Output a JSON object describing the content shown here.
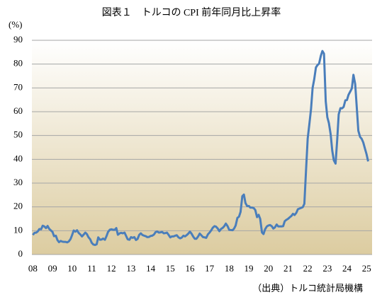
{
  "chart_data": {
    "type": "line",
    "title": "図表１　トルコの CPI 前年同月比上昇率",
    "y_label": "(%)",
    "source": "（出典）トルコ統計局機構",
    "x": [
      2008.0,
      2008.08,
      2008.17,
      2008.25,
      2008.33,
      2008.42,
      2008.5,
      2008.58,
      2008.67,
      2008.75,
      2008.83,
      2008.92,
      2009.0,
      2009.08,
      2009.17,
      2009.25,
      2009.33,
      2009.42,
      2009.5,
      2009.58,
      2009.67,
      2009.75,
      2009.83,
      2009.92,
      2010.0,
      2010.08,
      2010.17,
      2010.25,
      2010.33,
      2010.42,
      2010.5,
      2010.58,
      2010.67,
      2010.75,
      2010.83,
      2010.92,
      2011.0,
      2011.08,
      2011.17,
      2011.25,
      2011.33,
      2011.42,
      2011.5,
      2011.58,
      2011.67,
      2011.75,
      2011.83,
      2011.92,
      2012.0,
      2012.08,
      2012.17,
      2012.25,
      2012.33,
      2012.42,
      2012.5,
      2012.58,
      2012.67,
      2012.75,
      2012.83,
      2012.92,
      2013.0,
      2013.08,
      2013.17,
      2013.25,
      2013.33,
      2013.42,
      2013.5,
      2013.58,
      2013.67,
      2013.75,
      2013.83,
      2013.92,
      2014.0,
      2014.08,
      2014.17,
      2014.25,
      2014.33,
      2014.42,
      2014.5,
      2014.58,
      2014.67,
      2014.75,
      2014.83,
      2014.92,
      2015.0,
      2015.08,
      2015.17,
      2015.25,
      2015.33,
      2015.42,
      2015.5,
      2015.58,
      2015.67,
      2015.75,
      2015.83,
      2015.92,
      2016.0,
      2016.08,
      2016.17,
      2016.25,
      2016.33,
      2016.42,
      2016.5,
      2016.58,
      2016.67,
      2016.75,
      2016.83,
      2016.92,
      2017.0,
      2017.08,
      2017.17,
      2017.25,
      2017.33,
      2017.42,
      2017.5,
      2017.58,
      2017.67,
      2017.75,
      2017.83,
      2017.92,
      2018.0,
      2018.08,
      2018.17,
      2018.25,
      2018.33,
      2018.42,
      2018.5,
      2018.58,
      2018.67,
      2018.75,
      2018.83,
      2018.92,
      2019.0,
      2019.08,
      2019.17,
      2019.25,
      2019.33,
      2019.42,
      2019.5,
      2019.58,
      2019.67,
      2019.75,
      2019.83,
      2019.92,
      2020.0,
      2020.08,
      2020.17,
      2020.25,
      2020.33,
      2020.42,
      2020.5,
      2020.58,
      2020.67,
      2020.75,
      2020.83,
      2020.92,
      2021.0,
      2021.08,
      2021.17,
      2021.25,
      2021.33,
      2021.42,
      2021.5,
      2021.58,
      2021.67,
      2021.75,
      2021.83,
      2021.92,
      2022.0,
      2022.08,
      2022.17,
      2022.25,
      2022.33,
      2022.42,
      2022.5,
      2022.58,
      2022.67,
      2022.75,
      2022.83,
      2022.92,
      2023.0,
      2023.08,
      2023.17,
      2023.25,
      2023.33,
      2023.42,
      2023.5,
      2023.58,
      2023.67,
      2023.75,
      2023.83,
      2023.92,
      2024.0,
      2024.08,
      2024.17,
      2024.25,
      2024.33,
      2024.42,
      2024.5,
      2024.58,
      2024.67,
      2024.75,
      2024.83,
      2024.92,
      2025.0,
      2025.08
    ],
    "series": [
      {
        "color": "#4a7ebb",
        "values": [
          8.2,
          9.1,
          9.2,
          9.7,
          10.7,
          10.6,
          12.1,
          11.8,
          11.1,
          12.0,
          10.8,
          10.1,
          9.5,
          7.7,
          7.9,
          6.1,
          5.2,
          5.7,
          5.4,
          5.3,
          5.3,
          5.1,
          5.5,
          6.5,
          8.2,
          10.1,
          9.6,
          10.2,
          9.1,
          8.4,
          7.6,
          8.3,
          9.2,
          8.6,
          7.3,
          6.4,
          4.9,
          4.2,
          4.0,
          4.3,
          7.2,
          6.2,
          6.3,
          6.7,
          6.2,
          7.7,
          9.5,
          10.4,
          10.6,
          10.4,
          10.4,
          11.1,
          8.3,
          8.9,
          9.1,
          8.9,
          9.2,
          7.8,
          6.4,
          6.2,
          7.3,
          7.0,
          7.3,
          6.1,
          6.5,
          8.3,
          8.9,
          8.2,
          7.9,
          7.7,
          7.3,
          7.4,
          7.8,
          7.9,
          8.4,
          9.4,
          9.7,
          9.2,
          9.3,
          9.5,
          8.9,
          9.0,
          9.2,
          8.2,
          7.2,
          7.6,
          7.6,
          7.9,
          8.1,
          7.2,
          6.8,
          7.1,
          7.9,
          7.6,
          8.1,
          8.8,
          9.6,
          8.8,
          7.5,
          6.6,
          6.6,
          7.6,
          8.8,
          8.1,
          7.3,
          7.2,
          7.0,
          8.5,
          9.2,
          10.1,
          11.3,
          11.9,
          11.7,
          10.9,
          9.8,
          10.7,
          11.2,
          11.9,
          13.0,
          11.9,
          10.4,
          10.3,
          10.2,
          10.9,
          12.2,
          15.4,
          15.9,
          17.9,
          24.5,
          25.2,
          21.6,
          20.3,
          20.4,
          19.7,
          19.7,
          19.5,
          18.7,
          15.7,
          16.7,
          15.0,
          9.3,
          8.6,
          10.6,
          11.8,
          12.2,
          12.4,
          11.9,
          10.9,
          11.4,
          12.6,
          11.8,
          11.8,
          11.8,
          11.9,
          14.0,
          14.6,
          15.0,
          15.6,
          16.2,
          17.1,
          16.6,
          17.5,
          19.0,
          19.3,
          19.6,
          19.9,
          21.3,
          36.1,
          48.7,
          54.4,
          61.1,
          70.0,
          73.5,
          78.6,
          79.6,
          80.2,
          83.5,
          85.5,
          84.4,
          64.3,
          57.7,
          55.2,
          50.5,
          43.7,
          39.6,
          38.2,
          47.8,
          58.9,
          61.5,
          61.4,
          62.0,
          64.8,
          64.9,
          67.1,
          68.5,
          69.8,
          75.5,
          71.6,
          61.8,
          52.0,
          49.4,
          48.6,
          47.1,
          44.4,
          42.1,
          39.1
        ]
      }
    ],
    "xlim": [
      2007.95,
      2025.28
    ],
    "xticks": [
      {
        "value": 2008,
        "label": "08"
      },
      {
        "value": 2009,
        "label": "09"
      },
      {
        "value": 2010,
        "label": "10"
      },
      {
        "value": 2011,
        "label": "11"
      },
      {
        "value": 2012,
        "label": "12"
      },
      {
        "value": 2013,
        "label": "13"
      },
      {
        "value": 2014,
        "label": "14"
      },
      {
        "value": 2015,
        "label": "15"
      },
      {
        "value": 2016,
        "label": "16"
      },
      {
        "value": 2017,
        "label": "17"
      },
      {
        "value": 2018,
        "label": "18"
      },
      {
        "value": 2019,
        "label": "19"
      },
      {
        "value": 2020,
        "label": "20"
      },
      {
        "value": 2021,
        "label": "21"
      },
      {
        "value": 2022,
        "label": "22"
      },
      {
        "value": 2023,
        "label": "23"
      },
      {
        "value": 2024,
        "label": "24"
      },
      {
        "value": 2025,
        "label": "25"
      }
    ],
    "ylim": [
      0,
      90
    ],
    "yticks": [
      0,
      10,
      20,
      30,
      40,
      50,
      60,
      70,
      80,
      90
    ],
    "grid": true
  }
}
